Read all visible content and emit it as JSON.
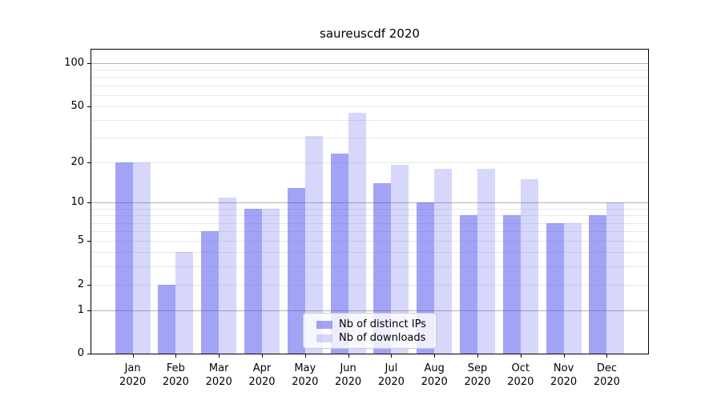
{
  "figure": {
    "title": "saureuscdf 2020"
  },
  "chart_data": {
    "type": "bar",
    "title": "saureuscdf 2020",
    "categories": [
      "Jan",
      "Feb",
      "Mar",
      "Apr",
      "May",
      "Jun",
      "Jul",
      "Aug",
      "Sep",
      "Oct",
      "Nov",
      "Dec"
    ],
    "x_tick_second_line": "2020",
    "series": [
      {
        "name": "Nb of distinct IPs",
        "color": "rgba(88,88,238,0.55)",
        "values": [
          20,
          2,
          6,
          9,
          13,
          23,
          14,
          10,
          8,
          8,
          7,
          8
        ]
      },
      {
        "name": "Nb of downloads",
        "color": "rgba(88,88,238,0.24)",
        "values": [
          20,
          4,
          11,
          9,
          31,
          45,
          19,
          18,
          18,
          15,
          7,
          10
        ]
      }
    ],
    "yscale": "log1p",
    "ylim": [
      0,
      124.5
    ],
    "y_tick_values": [
      100,
      50,
      20,
      10,
      5,
      2,
      1,
      0
    ],
    "y_tick_labels": [
      "100",
      "50",
      "20",
      "10",
      "5",
      "2",
      "1",
      "0"
    ],
    "y_gridlines_decade": [
      1,
      10,
      100
    ],
    "y_gridlines_minor": [
      2,
      3,
      4,
      5,
      6,
      7,
      8,
      9,
      20,
      30,
      40,
      50,
      60,
      70,
      80,
      90
    ],
    "grid": true,
    "legend_position": "lower-center-inside"
  },
  "legend": {
    "items": [
      {
        "label": "Nb of distinct IPs",
        "swatch_color": "rgba(88,88,238,0.55)"
      },
      {
        "label": "Nb of downloads",
        "swatch_color": "rgba(88,88,238,0.24)"
      }
    ]
  },
  "colors": {
    "bar_distinct_ips": "#a9a9f4",
    "bar_downloads": "#dcdcf8",
    "gridline_decade": "#b0b0b0",
    "gridline_minor": "#e8e8e8",
    "spine": "#000000",
    "text": "#000000",
    "legend_border": "#cccccc",
    "legend_background": "rgba(255,255,255,0.8)"
  }
}
